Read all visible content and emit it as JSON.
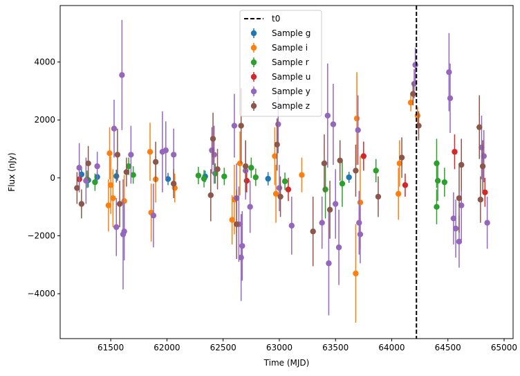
{
  "chart_data": {
    "type": "scatter",
    "xlabel": "Time (MJD)",
    "ylabel": "Flux (nJy)",
    "xlim": [
      61050,
      65080
    ],
    "ylim": [
      -5550,
      5950
    ],
    "xticks": [
      61500,
      62000,
      62500,
      63000,
      63500,
      64000,
      64500,
      65000
    ],
    "xtick_labels": [
      "61500",
      "62000",
      "62500",
      "63000",
      "63500",
      "64000",
      "64500",
      "65000"
    ],
    "yticks": [
      -4000,
      -2000,
      0,
      2000,
      4000
    ],
    "ytick_labels": [
      "−4000",
      "−2000",
      "0",
      "2000",
      "4000"
    ],
    "legend_position": "upper center",
    "t0": {
      "label": "t0",
      "x": 64220,
      "color": "#000000"
    },
    "series": [
      {
        "name": "Sample g",
        "color": "#1f77b4",
        "points": [
          {
            "x": 61240,
            "y": 120,
            "err": 200
          },
          {
            "x": 61300,
            "y": -80,
            "err": 250
          },
          {
            "x": 61380,
            "y": 30,
            "err": 180
          },
          {
            "x": 61550,
            "y": 60,
            "err": 220
          },
          {
            "x": 62010,
            "y": -40,
            "err": 210
          },
          {
            "x": 62340,
            "y": 50,
            "err": 200
          },
          {
            "x": 62900,
            "y": -30,
            "err": 230
          },
          {
            "x": 63620,
            "y": 20,
            "err": 190
          }
        ]
      },
      {
        "name": "Sample i",
        "color": "#ff7f0e",
        "points": [
          {
            "x": 61480,
            "y": -950,
            "err": 900
          },
          {
            "x": 61490,
            "y": 850,
            "err": 900
          },
          {
            "x": 61500,
            "y": -250,
            "err": 1000
          },
          {
            "x": 61520,
            "y": -700,
            "err": 1000
          },
          {
            "x": 61620,
            "y": -800,
            "err": 900
          },
          {
            "x": 61850,
            "y": 900,
            "err": 1000
          },
          {
            "x": 61860,
            "y": -1200,
            "err": 1000
          },
          {
            "x": 61900,
            "y": -50,
            "err": 800
          },
          {
            "x": 62070,
            "y": -350,
            "err": 500
          },
          {
            "x": 62580,
            "y": -1450,
            "err": 850
          },
          {
            "x": 62600,
            "y": -750,
            "err": 1200
          },
          {
            "x": 62650,
            "y": 500,
            "err": 1100
          },
          {
            "x": 62960,
            "y": 750,
            "err": 1000
          },
          {
            "x": 62970,
            "y": -550,
            "err": 1000
          },
          {
            "x": 63200,
            "y": 100,
            "err": 600
          },
          {
            "x": 63690,
            "y": 2050,
            "err": 1600
          },
          {
            "x": 63680,
            "y": -3300,
            "err": 1700
          },
          {
            "x": 63720,
            "y": -850,
            "err": 1600
          },
          {
            "x": 64060,
            "y": -550,
            "err": 900
          },
          {
            "x": 64070,
            "y": 500,
            "err": 800
          },
          {
            "x": 64170,
            "y": 2600,
            "err": 300
          },
          {
            "x": 64230,
            "y": 2150,
            "err": 300
          }
        ]
      },
      {
        "name": "Sample r",
        "color": "#2ca02c",
        "points": [
          {
            "x": 61290,
            "y": -50,
            "err": 300
          },
          {
            "x": 61360,
            "y": -150,
            "err": 300
          },
          {
            "x": 61660,
            "y": 400,
            "err": 300
          },
          {
            "x": 61700,
            "y": 100,
            "err": 300
          },
          {
            "x": 62280,
            "y": 80,
            "err": 300
          },
          {
            "x": 62330,
            "y": -30,
            "err": 300
          },
          {
            "x": 62430,
            "y": 150,
            "err": 350
          },
          {
            "x": 62510,
            "y": 50,
            "err": 300
          },
          {
            "x": 62750,
            "y": 350,
            "err": 350
          },
          {
            "x": 62790,
            "y": 20,
            "err": 300
          },
          {
            "x": 63050,
            "y": -120,
            "err": 300
          },
          {
            "x": 63410,
            "y": -400,
            "err": 1000
          },
          {
            "x": 63560,
            "y": -200,
            "err": 800
          },
          {
            "x": 63860,
            "y": 250,
            "err": 400
          },
          {
            "x": 64400,
            "y": 500,
            "err": 850
          },
          {
            "x": 64400,
            "y": -1000,
            "err": 600
          },
          {
            "x": 64410,
            "y": -100,
            "err": 700
          },
          {
            "x": 64470,
            "y": -150,
            "err": 500
          }
        ]
      },
      {
        "name": "Sample u",
        "color": "#d62728",
        "points": [
          {
            "x": 61220,
            "y": -50,
            "err": 300
          },
          {
            "x": 62710,
            "y": -100,
            "err": 400
          },
          {
            "x": 63080,
            "y": -400,
            "err": 400
          },
          {
            "x": 63750,
            "y": 750,
            "err": 500
          },
          {
            "x": 64120,
            "y": -250,
            "err": 400
          },
          {
            "x": 64560,
            "y": 900,
            "err": 600
          },
          {
            "x": 64830,
            "y": -500,
            "err": 500
          }
        ]
      },
      {
        "name": "Sample y",
        "color": "#9467bd",
        "points": [
          {
            "x": 61220,
            "y": 350,
            "err": 850
          },
          {
            "x": 61280,
            "y": -100,
            "err": 800
          },
          {
            "x": 61380,
            "y": 400,
            "err": 500
          },
          {
            "x": 61530,
            "y": 1700,
            "err": 1000
          },
          {
            "x": 61550,
            "y": -1700,
            "err": 1000
          },
          {
            "x": 61600,
            "y": 3550,
            "err": 1900
          },
          {
            "x": 61610,
            "y": -1950,
            "err": 1900
          },
          {
            "x": 61620,
            "y": -1850,
            "err": 1000
          },
          {
            "x": 61680,
            "y": 800,
            "err": 1000
          },
          {
            "x": 61880,
            "y": -1300,
            "err": 1100
          },
          {
            "x": 61960,
            "y": 900,
            "err": 1400
          },
          {
            "x": 61990,
            "y": 950,
            "err": 1000
          },
          {
            "x": 62060,
            "y": 800,
            "err": 900
          },
          {
            "x": 62400,
            "y": 950,
            "err": 800
          },
          {
            "x": 62420,
            "y": 800,
            "err": 1000
          },
          {
            "x": 62600,
            "y": 1800,
            "err": 1100
          },
          {
            "x": 62620,
            "y": -700,
            "err": 1200
          },
          {
            "x": 62640,
            "y": -1600,
            "err": 1300
          },
          {
            "x": 62660,
            "y": -2750,
            "err": 1500
          },
          {
            "x": 62670,
            "y": -2350,
            "err": 1200
          },
          {
            "x": 62700,
            "y": 250,
            "err": 1000
          },
          {
            "x": 62740,
            "y": -1000,
            "err": 900
          },
          {
            "x": 62990,
            "y": 1850,
            "err": 1000
          },
          {
            "x": 63000,
            "y": -350,
            "err": 800
          },
          {
            "x": 63110,
            "y": -1650,
            "err": 1000
          },
          {
            "x": 63380,
            "y": -1550,
            "err": 900
          },
          {
            "x": 63430,
            "y": 2150,
            "err": 1800
          },
          {
            "x": 63440,
            "y": -2950,
            "err": 1800
          },
          {
            "x": 63480,
            "y": 1850,
            "err": 1400
          },
          {
            "x": 63500,
            "y": -900,
            "err": 1200
          },
          {
            "x": 63530,
            "y": -2400,
            "err": 1300
          },
          {
            "x": 63700,
            "y": 1650,
            "err": 1200
          },
          {
            "x": 63710,
            "y": -1550,
            "err": 1100
          },
          {
            "x": 63720,
            "y": -1950,
            "err": 1000
          },
          {
            "x": 64210,
            "y": 3900,
            "err": 600
          },
          {
            "x": 64200,
            "y": 3250,
            "err": 500
          },
          {
            "x": 64510,
            "y": 3650,
            "err": 1350
          },
          {
            "x": 64520,
            "y": 2750,
            "err": 1200
          },
          {
            "x": 64550,
            "y": -1400,
            "err": 900
          },
          {
            "x": 64570,
            "y": -1750,
            "err": 1000
          },
          {
            "x": 64600,
            "y": -2200,
            "err": 900
          },
          {
            "x": 64620,
            "y": -950,
            "err": 1200
          },
          {
            "x": 64800,
            "y": 1050,
            "err": 1100
          },
          {
            "x": 64820,
            "y": 750,
            "err": 900
          },
          {
            "x": 64850,
            "y": -1550,
            "err": 900
          }
        ]
      },
      {
        "name": "Sample z",
        "color": "#8c564b",
        "points": [
          {
            "x": 61200,
            "y": -350,
            "err": 550
          },
          {
            "x": 61240,
            "y": -900,
            "err": 500
          },
          {
            "x": 61300,
            "y": 500,
            "err": 600
          },
          {
            "x": 61560,
            "y": 800,
            "err": 900
          },
          {
            "x": 61580,
            "y": -900,
            "err": 800
          },
          {
            "x": 61640,
            "y": 200,
            "err": 500
          },
          {
            "x": 61900,
            "y": 550,
            "err": 700
          },
          {
            "x": 62060,
            "y": -200,
            "err": 500
          },
          {
            "x": 62390,
            "y": -600,
            "err": 900
          },
          {
            "x": 62410,
            "y": 1350,
            "err": 900
          },
          {
            "x": 62450,
            "y": 300,
            "err": 700
          },
          {
            "x": 62620,
            "y": -1600,
            "err": 1200
          },
          {
            "x": 62660,
            "y": 1800,
            "err": 1300
          },
          {
            "x": 62700,
            "y": 400,
            "err": 900
          },
          {
            "x": 62980,
            "y": 1150,
            "err": 900
          },
          {
            "x": 63010,
            "y": -650,
            "err": 700
          },
          {
            "x": 63300,
            "y": -1850,
            "err": 1200
          },
          {
            "x": 63400,
            "y": 500,
            "err": 1000
          },
          {
            "x": 63450,
            "y": -1100,
            "err": 1000
          },
          {
            "x": 63540,
            "y": 600,
            "err": 700
          },
          {
            "x": 63680,
            "y": 250,
            "err": 900
          },
          {
            "x": 63880,
            "y": -650,
            "err": 700
          },
          {
            "x": 64090,
            "y": 700,
            "err": 700
          },
          {
            "x": 64190,
            "y": 2900,
            "err": 400
          },
          {
            "x": 64240,
            "y": 1800,
            "err": 500
          },
          {
            "x": 64600,
            "y": -700,
            "err": 1200
          },
          {
            "x": 64620,
            "y": 450,
            "err": 900
          },
          {
            "x": 64780,
            "y": 1750,
            "err": 1100
          },
          {
            "x": 64790,
            "y": -750,
            "err": 800
          },
          {
            "x": 64810,
            "y": 400,
            "err": 900
          }
        ]
      }
    ]
  }
}
